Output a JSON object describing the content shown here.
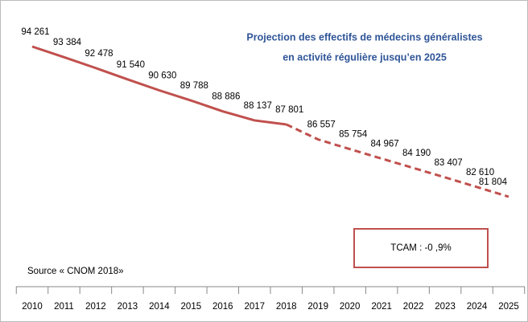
{
  "chart_data": {
    "type": "line",
    "title": [
      "Projection des effectifs de médecins généralistes",
      "en activité régulière jusqu’en 2025"
    ],
    "source": "Source « CNOM 2018»",
    "annotation": "TCAM : -0 ,9%",
    "categories": [
      "2010",
      "2011",
      "2012",
      "2013",
      "2014",
      "2015",
      "2016",
      "2017",
      "2018",
      "2019",
      "2020",
      "2021",
      "2022",
      "2023",
      "2024",
      "2025"
    ],
    "solid_until": "2018",
    "series": [
      {
        "color": "#c0504d",
        "values": [
          94261,
          93384,
          92478,
          91540,
          90630,
          89788,
          88886,
          88137,
          87801,
          86557,
          85754,
          84967,
          84190,
          83407,
          82610,
          81804
        ],
        "value_labels": [
          "94 261",
          "93 384",
          "92 478",
          "91 540",
          "90 630",
          "89 788",
          "88 886",
          "88 137",
          "87 801",
          "86 557",
          "85 754",
          "84 967",
          "84 190",
          "83 407",
          "82 610",
          "81 804"
        ]
      }
    ]
  }
}
